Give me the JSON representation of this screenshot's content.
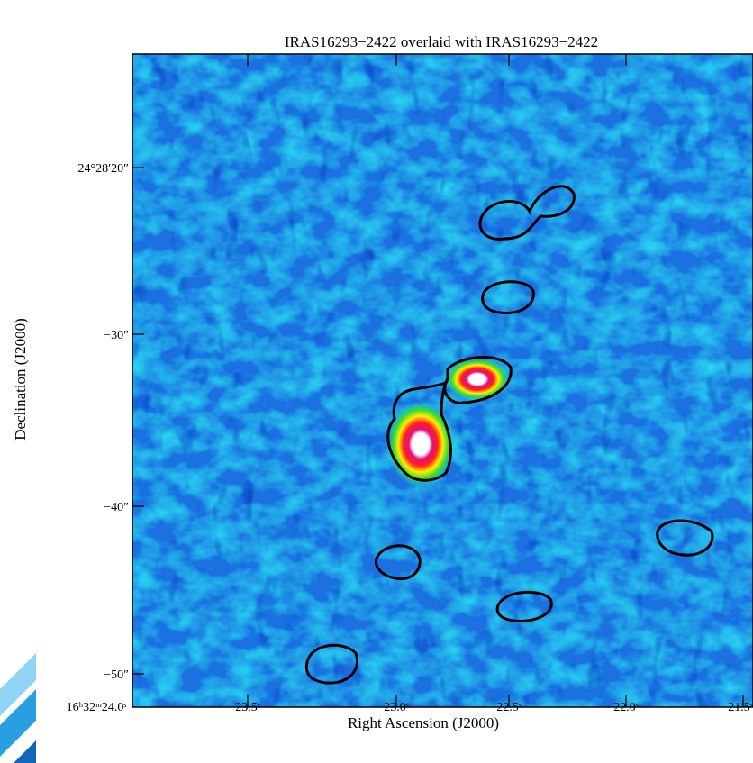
{
  "title": "IRAS16293−2422 overlaid with IRAS16293−2422",
  "x_axis": {
    "label": "Right Ascension (J2000)",
    "ticks": [
      "16ʰ32ᵐ24.0ˢ",
      "23.5ˢ",
      "23.0ˢ",
      "22.5ˢ",
      "22.0ˢ",
      "21.5ˢ"
    ]
  },
  "y_axis": {
    "label": "Declination (J2000)",
    "ticks": [
      "−24°28′20″",
      "−30″",
      "−40″",
      "−50″"
    ]
  }
}
